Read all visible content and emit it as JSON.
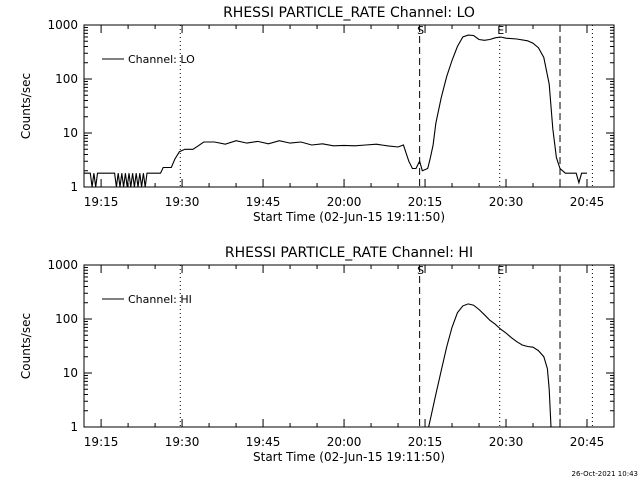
{
  "footer_timestamp": "26-Oct-2021 10:43",
  "chart_data": [
    {
      "type": "line",
      "title": "RHESSI PARTICLE_RATE Channel: LO",
      "xlabel": "Start Time (02-Jun-15 19:11:50)",
      "ylabel": "Counts/sec",
      "yscale": "log",
      "xlim": [
        "19:11:50",
        "20:50:00"
      ],
      "ylim": [
        1,
        1000
      ],
      "x_ticks": [
        "19:15",
        "19:30",
        "19:45",
        "20:00",
        "20:15",
        "20:30",
        "20:45"
      ],
      "y_ticks": [
        "1",
        "10",
        "100",
        "1000"
      ],
      "legend": {
        "position": "top-left",
        "entries": [
          "Channel: LO"
        ]
      },
      "markers": [
        {
          "time": "19:29:40",
          "label": "",
          "style": "dotted"
        },
        {
          "time": "20:14:00",
          "label": "S",
          "style": "dashed"
        },
        {
          "time": "20:28:50",
          "label": "E",
          "style": "dotted"
        },
        {
          "time": "20:40:00",
          "label": "",
          "style": "dashed"
        },
        {
          "time": "20:46:00",
          "label": "",
          "style": "dotted"
        }
      ],
      "series": [
        {
          "name": "Channel: LO",
          "points": [
            [
              "19:11:50",
              1.8
            ],
            [
              "19:13:00",
              1.8
            ],
            [
              "19:13:20",
              1.0
            ],
            [
              "19:13:40",
              1.8
            ],
            [
              "19:14:00",
              1.0
            ],
            [
              "19:14:20",
              1.8
            ],
            [
              "19:17:00",
              1.8
            ],
            [
              "19:17:30",
              1.8
            ],
            [
              "19:17:50",
              1.0
            ],
            [
              "19:18:10",
              1.8
            ],
            [
              "19:18:30",
              1.0
            ],
            [
              "19:18:50",
              1.8
            ],
            [
              "19:19:10",
              1.0
            ],
            [
              "19:19:30",
              1.8
            ],
            [
              "19:19:50",
              1.0
            ],
            [
              "19:20:10",
              1.8
            ],
            [
              "19:20:30",
              1.0
            ],
            [
              "19:20:50",
              1.8
            ],
            [
              "19:21:10",
              1.0
            ],
            [
              "19:21:30",
              1.8
            ],
            [
              "19:21:50",
              1.0
            ],
            [
              "19:22:10",
              1.8
            ],
            [
              "19:22:30",
              1.0
            ],
            [
              "19:22:50",
              1.8
            ],
            [
              "19:23:10",
              1.0
            ],
            [
              "19:23:30",
              1.8
            ],
            [
              "19:26:00",
              1.8
            ],
            [
              "19:26:30",
              2.3
            ],
            [
              "19:28:00",
              2.3
            ],
            [
              "19:28:40",
              3.3
            ],
            [
              "19:29:30",
              4.5
            ],
            [
              "19:30:30",
              5.0
            ],
            [
              "19:32:00",
              5.0
            ],
            [
              "19:33:00",
              5.8
            ],
            [
              "19:34:00",
              6.8
            ],
            [
              "19:36:00",
              6.8
            ],
            [
              "19:38:00",
              6.2
            ],
            [
              "19:40:00",
              7.2
            ],
            [
              "19:42:00",
              6.5
            ],
            [
              "19:44:00",
              7.0
            ],
            [
              "19:46:00",
              6.3
            ],
            [
              "19:48:00",
              7.2
            ],
            [
              "19:50:00",
              6.5
            ],
            [
              "19:52:00",
              6.8
            ],
            [
              "19:54:00",
              6.0
            ],
            [
              "19:56:00",
              6.3
            ],
            [
              "19:58:00",
              5.8
            ],
            [
              "20:00:00",
              5.9
            ],
            [
              "20:02:00",
              5.8
            ],
            [
              "20:04:00",
              6.0
            ],
            [
              "20:06:00",
              6.2
            ],
            [
              "20:08:00",
              5.8
            ],
            [
              "20:10:00",
              5.5
            ],
            [
              "20:11:00",
              6.0
            ],
            [
              "20:12:00",
              3.0
            ],
            [
              "20:12:40",
              2.2
            ],
            [
              "20:13:20",
              2.2
            ],
            [
              "20:14:00",
              3.0
            ],
            [
              "20:14:30",
              2.0
            ],
            [
              "20:15:30",
              2.2
            ],
            [
              "20:16:00",
              3.5
            ],
            [
              "20:16:30",
              6.0
            ],
            [
              "20:17:00",
              15
            ],
            [
              "20:18:00",
              45
            ],
            [
              "20:19:00",
              110
            ],
            [
              "20:20:00",
              220
            ],
            [
              "20:21:00",
              400
            ],
            [
              "20:22:00",
              600
            ],
            [
              "20:23:00",
              650
            ],
            [
              "20:24:00",
              640
            ],
            [
              "20:25:00",
              540
            ],
            [
              "20:26:00",
              520
            ],
            [
              "20:27:00",
              540
            ],
            [
              "20:28:00",
              580
            ],
            [
              "20:29:00",
              600
            ],
            [
              "20:30:00",
              570
            ],
            [
              "20:32:00",
              550
            ],
            [
              "20:34:00",
              510
            ],
            [
              "20:35:00",
              460
            ],
            [
              "20:36:00",
              380
            ],
            [
              "20:37:00",
              250
            ],
            [
              "20:38:00",
              80
            ],
            [
              "20:38:40",
              12
            ],
            [
              "20:39:20",
              3.5
            ],
            [
              "20:40:00",
              2.2
            ],
            [
              "20:41:00",
              1.8
            ],
            [
              "20:42:00",
              1.8
            ],
            [
              "20:43:00",
              1.8
            ],
            [
              "20:43:30",
              1.2
            ],
            [
              "20:44:00",
              1.8
            ],
            [
              "20:45:00",
              1.8
            ]
          ]
        }
      ]
    },
    {
      "type": "line",
      "title": "RHESSI PARTICLE_RATE Channel: HI",
      "xlabel": "Start Time (02-Jun-15 19:11:50)",
      "ylabel": "Counts/sec",
      "yscale": "log",
      "xlim": [
        "19:11:50",
        "20:50:00"
      ],
      "ylim": [
        1,
        1000
      ],
      "x_ticks": [
        "19:15",
        "19:30",
        "19:45",
        "20:00",
        "20:15",
        "20:30",
        "20:45"
      ],
      "y_ticks": [
        "1",
        "10",
        "100",
        "1000"
      ],
      "legend": {
        "position": "top-left",
        "entries": [
          "Channel: HI"
        ]
      },
      "markers": [
        {
          "time": "19:29:40",
          "label": "",
          "style": "dotted"
        },
        {
          "time": "20:14:00",
          "label": "S",
          "style": "dashed"
        },
        {
          "time": "20:28:50",
          "label": "E",
          "style": "dotted"
        },
        {
          "time": "20:40:00",
          "label": "",
          "style": "dashed"
        },
        {
          "time": "20:46:00",
          "label": "",
          "style": "dotted"
        }
      ],
      "series": [
        {
          "name": "Channel: HI",
          "points": [
            [
              "20:15:40",
              1.0
            ],
            [
              "20:16:00",
              1.4
            ],
            [
              "20:17:00",
              4.0
            ],
            [
              "20:18:00",
              11
            ],
            [
              "20:19:00",
              30
            ],
            [
              "20:20:00",
              70
            ],
            [
              "20:21:00",
              130
            ],
            [
              "20:22:00",
              175
            ],
            [
              "20:23:00",
              190
            ],
            [
              "20:24:00",
              180
            ],
            [
              "20:25:00",
              150
            ],
            [
              "20:26:00",
              120
            ],
            [
              "20:27:00",
              95
            ],
            [
              "20:28:00",
              80
            ],
            [
              "20:29:00",
              65
            ],
            [
              "20:30:00",
              55
            ],
            [
              "20:31:00",
              45
            ],
            [
              "20:32:00",
              38
            ],
            [
              "20:33:00",
              33
            ],
            [
              "20:34:00",
              31
            ],
            [
              "20:35:00",
              30
            ],
            [
              "20:36:00",
              26
            ],
            [
              "20:37:00",
              20
            ],
            [
              "20:37:40",
              12
            ],
            [
              "20:38:00",
              5.0
            ],
            [
              "20:38:20",
              1.0
            ]
          ]
        }
      ]
    }
  ]
}
